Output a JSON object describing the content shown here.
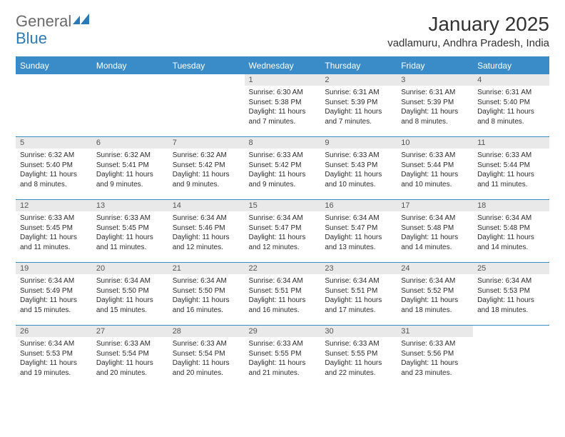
{
  "logo": {
    "text_general": "General",
    "text_blue": "Blue"
  },
  "title": "January 2025",
  "location": "vadlamuru, Andhra Pradesh, India",
  "colors": {
    "header_bg": "#3a8cc9",
    "header_text": "#ffffff",
    "daynum_bg": "#e9e9e9",
    "border": "#3a8cc9",
    "logo_gray": "#6b6b6b",
    "logo_blue": "#2a7ab8"
  },
  "day_headers": [
    "Sunday",
    "Monday",
    "Tuesday",
    "Wednesday",
    "Thursday",
    "Friday",
    "Saturday"
  ],
  "weeks": [
    [
      {
        "empty": true
      },
      {
        "empty": true
      },
      {
        "empty": true
      },
      {
        "n": "1",
        "sr": "6:30 AM",
        "ss": "5:38 PM",
        "dl": "11 hours and 7 minutes."
      },
      {
        "n": "2",
        "sr": "6:31 AM",
        "ss": "5:39 PM",
        "dl": "11 hours and 7 minutes."
      },
      {
        "n": "3",
        "sr": "6:31 AM",
        "ss": "5:39 PM",
        "dl": "11 hours and 8 minutes."
      },
      {
        "n": "4",
        "sr": "6:31 AM",
        "ss": "5:40 PM",
        "dl": "11 hours and 8 minutes."
      }
    ],
    [
      {
        "n": "5",
        "sr": "6:32 AM",
        "ss": "5:40 PM",
        "dl": "11 hours and 8 minutes."
      },
      {
        "n": "6",
        "sr": "6:32 AM",
        "ss": "5:41 PM",
        "dl": "11 hours and 9 minutes."
      },
      {
        "n": "7",
        "sr": "6:32 AM",
        "ss": "5:42 PM",
        "dl": "11 hours and 9 minutes."
      },
      {
        "n": "8",
        "sr": "6:33 AM",
        "ss": "5:42 PM",
        "dl": "11 hours and 9 minutes."
      },
      {
        "n": "9",
        "sr": "6:33 AM",
        "ss": "5:43 PM",
        "dl": "11 hours and 10 minutes."
      },
      {
        "n": "10",
        "sr": "6:33 AM",
        "ss": "5:44 PM",
        "dl": "11 hours and 10 minutes."
      },
      {
        "n": "11",
        "sr": "6:33 AM",
        "ss": "5:44 PM",
        "dl": "11 hours and 11 minutes."
      }
    ],
    [
      {
        "n": "12",
        "sr": "6:33 AM",
        "ss": "5:45 PM",
        "dl": "11 hours and 11 minutes."
      },
      {
        "n": "13",
        "sr": "6:33 AM",
        "ss": "5:45 PM",
        "dl": "11 hours and 11 minutes."
      },
      {
        "n": "14",
        "sr": "6:34 AM",
        "ss": "5:46 PM",
        "dl": "11 hours and 12 minutes."
      },
      {
        "n": "15",
        "sr": "6:34 AM",
        "ss": "5:47 PM",
        "dl": "11 hours and 12 minutes."
      },
      {
        "n": "16",
        "sr": "6:34 AM",
        "ss": "5:47 PM",
        "dl": "11 hours and 13 minutes."
      },
      {
        "n": "17",
        "sr": "6:34 AM",
        "ss": "5:48 PM",
        "dl": "11 hours and 14 minutes."
      },
      {
        "n": "18",
        "sr": "6:34 AM",
        "ss": "5:48 PM",
        "dl": "11 hours and 14 minutes."
      }
    ],
    [
      {
        "n": "19",
        "sr": "6:34 AM",
        "ss": "5:49 PM",
        "dl": "11 hours and 15 minutes."
      },
      {
        "n": "20",
        "sr": "6:34 AM",
        "ss": "5:50 PM",
        "dl": "11 hours and 15 minutes."
      },
      {
        "n": "21",
        "sr": "6:34 AM",
        "ss": "5:50 PM",
        "dl": "11 hours and 16 minutes."
      },
      {
        "n": "22",
        "sr": "6:34 AM",
        "ss": "5:51 PM",
        "dl": "11 hours and 16 minutes."
      },
      {
        "n": "23",
        "sr": "6:34 AM",
        "ss": "5:51 PM",
        "dl": "11 hours and 17 minutes."
      },
      {
        "n": "24",
        "sr": "6:34 AM",
        "ss": "5:52 PM",
        "dl": "11 hours and 18 minutes."
      },
      {
        "n": "25",
        "sr": "6:34 AM",
        "ss": "5:53 PM",
        "dl": "11 hours and 18 minutes."
      }
    ],
    [
      {
        "n": "26",
        "sr": "6:34 AM",
        "ss": "5:53 PM",
        "dl": "11 hours and 19 minutes."
      },
      {
        "n": "27",
        "sr": "6:33 AM",
        "ss": "5:54 PM",
        "dl": "11 hours and 20 minutes."
      },
      {
        "n": "28",
        "sr": "6:33 AM",
        "ss": "5:54 PM",
        "dl": "11 hours and 20 minutes."
      },
      {
        "n": "29",
        "sr": "6:33 AM",
        "ss": "5:55 PM",
        "dl": "11 hours and 21 minutes."
      },
      {
        "n": "30",
        "sr": "6:33 AM",
        "ss": "5:55 PM",
        "dl": "11 hours and 22 minutes."
      },
      {
        "n": "31",
        "sr": "6:33 AM",
        "ss": "5:56 PM",
        "dl": "11 hours and 23 minutes."
      },
      {
        "empty": true
      }
    ]
  ],
  "labels": {
    "sunrise": "Sunrise:",
    "sunset": "Sunset:",
    "daylight": "Daylight:"
  }
}
